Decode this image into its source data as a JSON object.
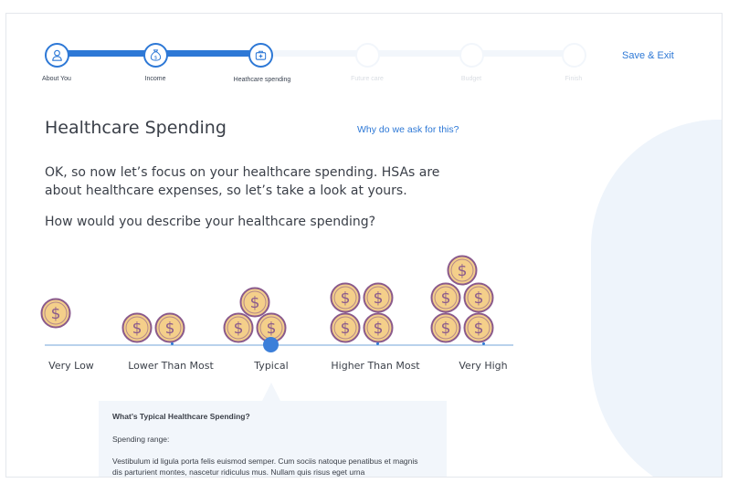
{
  "stepper": {
    "steps": [
      {
        "label": "About You",
        "icon": "person-icon",
        "state": "done"
      },
      {
        "label": "Income",
        "icon": "money-bag-icon",
        "state": "done"
      },
      {
        "label": "Heathcare spending",
        "icon": "medical-kit-icon",
        "state": "current"
      },
      {
        "label": "Future care",
        "icon": "",
        "state": "future"
      },
      {
        "label": "Budget",
        "icon": "",
        "state": "future"
      },
      {
        "label": "Finish",
        "icon": "",
        "state": "future"
      }
    ],
    "save_exit": "Save & Exit"
  },
  "main": {
    "title": "Healthcare Spending",
    "why_link": "Why do we ask for this?",
    "intro": "OK, so now let’s focus on your healthcare spending. HSAs are about healthcare expenses, so let’s take a look at yours.",
    "question": "How would you describe your healthcare spending?"
  },
  "scale": {
    "options": [
      {
        "label": "Very Low",
        "coins": 1
      },
      {
        "label": "Lower Than Most",
        "coins": 2
      },
      {
        "label": "Typical",
        "coins": 3
      },
      {
        "label": "Higher Than Most",
        "coins": 4
      },
      {
        "label": "Very High",
        "coins": 5
      }
    ],
    "selected": "Typical",
    "coin_symbol": "$"
  },
  "tooltip": {
    "title": "What’s Typical Healthcare Spending?",
    "range_label": "Spending range:",
    "body": "Vestibulum id ligula porta felis euismod semper. Cum sociis natoque penatibus et magnis dis parturient montes, nascetur ridiculus mus. Nullam quis risus eget urna"
  },
  "colors": {
    "accent": "#2d78d6",
    "coin_fill": "#f4cf8a",
    "coin_ring": "#8a5a8c",
    "track_light": "#f2f6fb"
  }
}
